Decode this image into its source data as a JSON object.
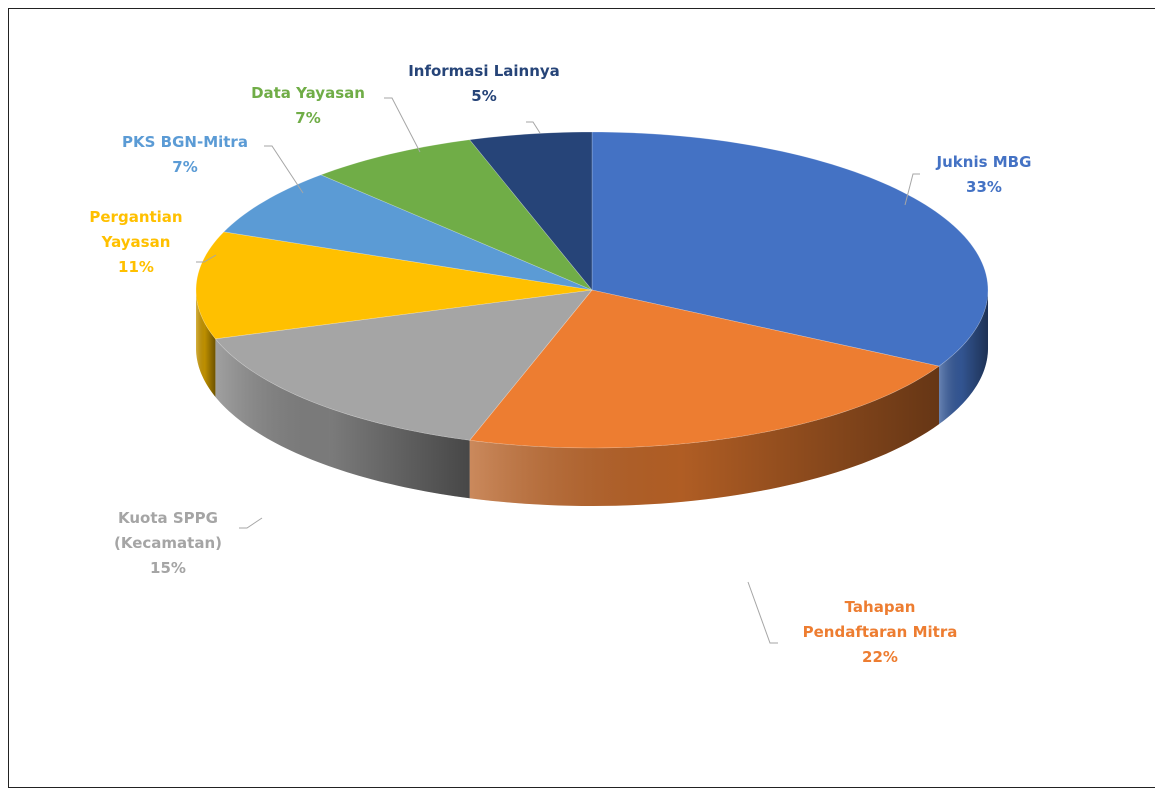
{
  "chart_data": {
    "type": "pie",
    "categories": [
      "Juknis MBG",
      "Tahapan Pendaftaran Mitra",
      "Kuota SPPG (Kecamatan)",
      "Pergantian Yayasan",
      "PKS BGN-Mitra",
      "Data Yayasan",
      "Informasi Lainnya"
    ],
    "values": [
      33,
      22,
      15,
      11,
      7,
      7,
      5
    ],
    "colors": [
      "#4472C4",
      "#ED7D31",
      "#A5A5A5",
      "#FFC000",
      "#5B9BD5",
      "#70AD47",
      "#264478"
    ],
    "labels": [
      {
        "lines": [
          "Juknis MBG",
          "33%"
        ]
      },
      {
        "lines": [
          "Tahapan",
          "Pendaftaran Mitra",
          "22%"
        ]
      },
      {
        "lines": [
          "Kuota SPPG",
          "(Kecamatan)",
          "15%"
        ]
      },
      {
        "lines": [
          "Pergantian",
          "Yayasan",
          "11%"
        ]
      },
      {
        "lines": [
          "PKS BGN-Mitra",
          "7%"
        ]
      },
      {
        "lines": [
          "Data Yayasan",
          "7%"
        ]
      },
      {
        "lines": [
          "Informasi Lainnya",
          "5%"
        ]
      }
    ],
    "style": "3d",
    "legend": "none"
  }
}
